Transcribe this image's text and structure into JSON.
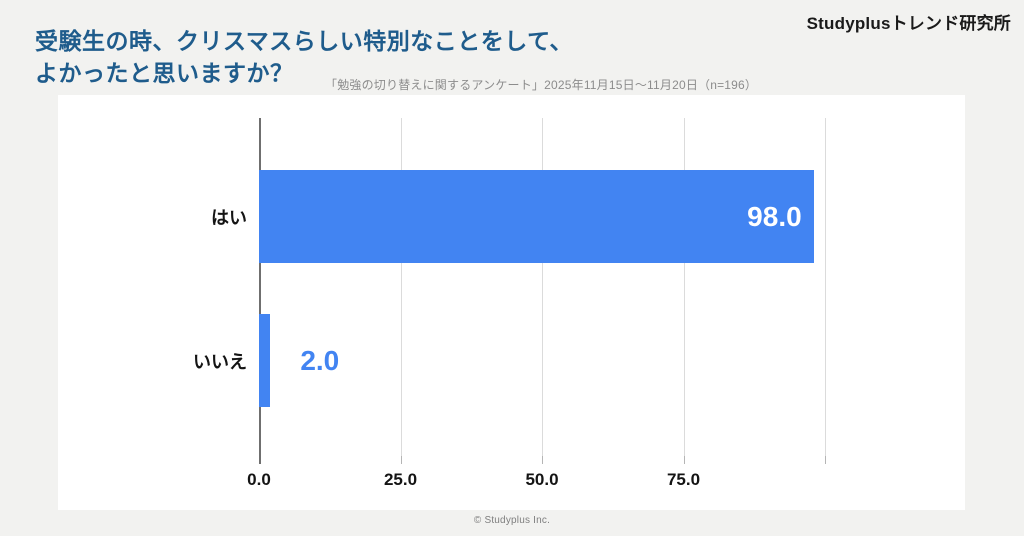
{
  "header": {
    "title": "受験生の時、クリスマスらしい特別なことをして、\nよかったと思いますか？",
    "subtitle": "「勉強の切り替えに関するアンケート」2025年11月15日～11月20日（n=196）",
    "logo": "Studyplusトレンド研究所"
  },
  "chart_data": {
    "type": "bar",
    "orientation": "horizontal",
    "title": "受験生の時、クリスマスらしい特別なことをして、よかったと思いますか？",
    "categories": [
      "はい",
      "いいえ"
    ],
    "values": [
      98.0,
      2.0
    ],
    "value_labels": [
      "98.0",
      "2.0"
    ],
    "xlim": [
      0,
      100
    ],
    "gridlines": [
      0,
      25,
      50,
      75,
      100
    ],
    "xtick_labels": [
      "0.0",
      "25.0",
      "50.0",
      "75.0",
      ""
    ],
    "grid": true,
    "legend": false,
    "bar_color": "#4284F2",
    "value_label_inside_color": "#FFFFFF",
    "value_label_outside_color": "#4284F2"
  },
  "footer": {
    "copyright": "© Studyplus Inc."
  }
}
